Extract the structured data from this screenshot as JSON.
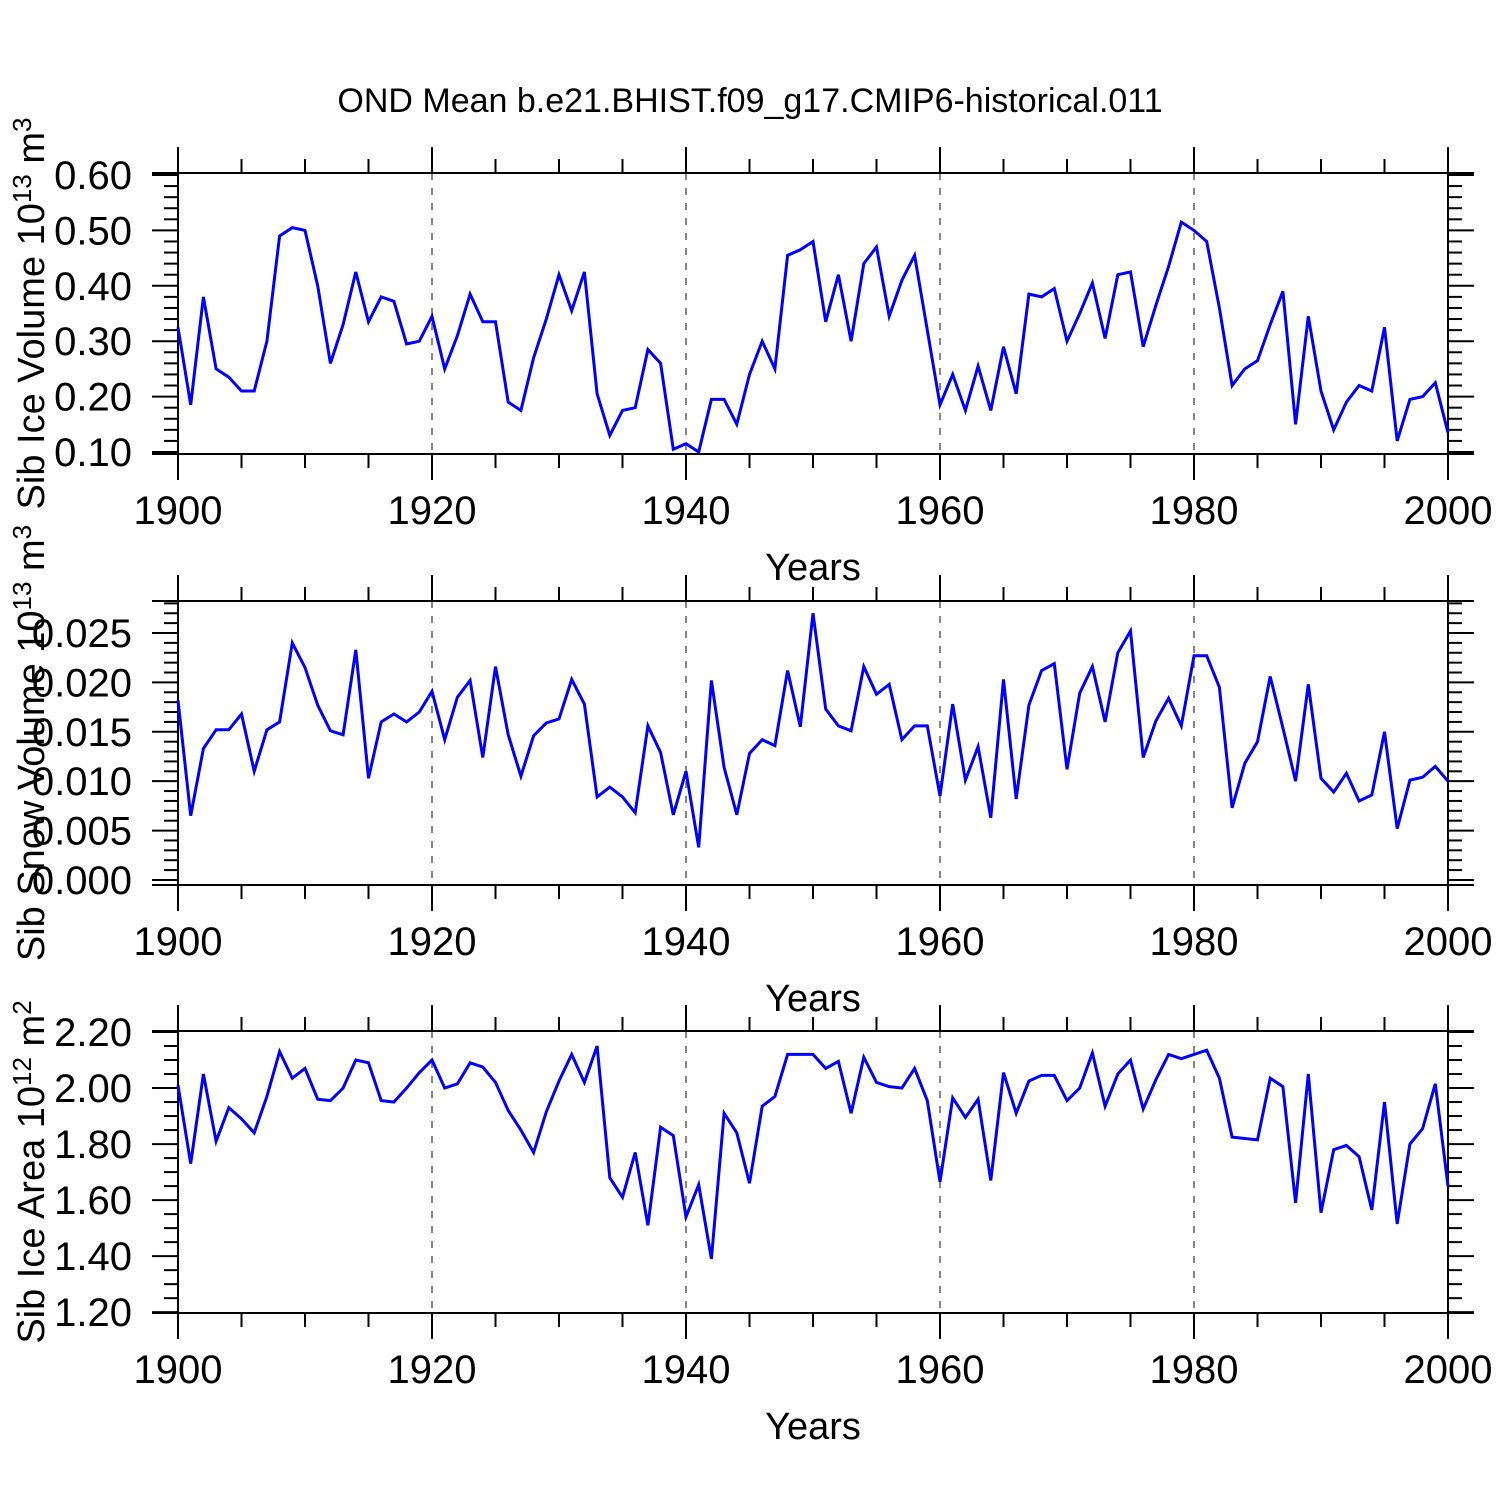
{
  "title": "OND Mean b.e21.BHIST.f09_g17.CMIP6-historical.011",
  "style": {
    "line_color": "#0000ff",
    "grid_color": "#7a7a7a",
    "axis_color": "#000000",
    "background": "#ffffff"
  },
  "chart_data": [
    {
      "type": "line",
      "xlabel": "Years",
      "ylabel": "Sib Ice Volume 10^{13} m^{3}",
      "x_start": 1900,
      "x_step": 1,
      "xlim": [
        1900,
        2000
      ],
      "ylim": [
        0.0964,
        0.6036
      ],
      "xticks_major": [
        1900,
        1920,
        1940,
        1960,
        1980,
        2000
      ],
      "xtick_minor_step": 5,
      "yticks_major": [
        0.1,
        0.2,
        0.3,
        0.4,
        0.5,
        0.6
      ],
      "ytick_labels": [
        "0.10",
        "0.20",
        "0.30",
        "0.40",
        "0.50",
        "0.60"
      ],
      "ytick_minor_step": 0.02,
      "grid_x": [
        1920,
        1940,
        1960,
        1980
      ],
      "grid_on": true,
      "legend": null,
      "series": [
        {
          "name": "Sib Ice Volume",
          "values": [
            0.325,
            0.185,
            0.38,
            0.25,
            0.235,
            0.21,
            0.21,
            0.3,
            0.49,
            0.505,
            0.5,
            0.4,
            0.26,
            0.33,
            0.425,
            0.335,
            0.38,
            0.372,
            0.295,
            0.3,
            0.345,
            0.25,
            0.31,
            0.385,
            0.335,
            0.335,
            0.19,
            0.175,
            0.27,
            0.34,
            0.42,
            0.355,
            0.425,
            0.205,
            0.13,
            0.175,
            0.18,
            0.285,
            0.26,
            0.105,
            0.115,
            0.1,
            0.195,
            0.195,
            0.15,
            0.24,
            0.3,
            0.25,
            0.455,
            0.465,
            0.48,
            0.335,
            0.42,
            0.3,
            0.44,
            0.47,
            0.345,
            0.41,
            0.455,
            0.32,
            0.185,
            0.24,
            0.175,
            0.255,
            0.175,
            0.29,
            0.205,
            0.385,
            0.38,
            0.395,
            0.3,
            0.35,
            0.405,
            0.305,
            0.42,
            0.425,
            0.29,
            0.365,
            0.435,
            0.515,
            0.5,
            0.48,
            0.36,
            0.22,
            0.25,
            0.265,
            0.33,
            0.39,
            0.15,
            0.345,
            0.21,
            0.14,
            0.19,
            0.22,
            0.21,
            0.325,
            0.12,
            0.195,
            0.2,
            0.225,
            0.135
          ]
        }
      ]
    },
    {
      "type": "line",
      "xlabel": "Years",
      "ylabel": "Sib Snow Volume 10^{13} m^{3}",
      "x_start": 1900,
      "x_step": 1,
      "xlim": [
        1900,
        2000
      ],
      "ylim": [
        -0.00051,
        0.02824
      ],
      "xticks_major": [
        1900,
        1920,
        1940,
        1960,
        1980,
        2000
      ],
      "xtick_minor_step": 5,
      "yticks_major": [
        0.0,
        0.005,
        0.01,
        0.015,
        0.02,
        0.025
      ],
      "ytick_labels": [
        "0.000",
        "0.005",
        "0.010",
        "0.015",
        "0.020",
        "0.025"
      ],
      "ytick_minor_step": 0.001,
      "grid_x": [
        1920,
        1940,
        1960,
        1980
      ],
      "grid_on": true,
      "legend": null,
      "series": [
        {
          "name": "Sib Snow Volume",
          "values": [
            0.0182,
            0.0065,
            0.0133,
            0.0152,
            0.0152,
            0.0168,
            0.011,
            0.0152,
            0.016,
            0.024,
            0.0215,
            0.0177,
            0.0151,
            0.0147,
            0.0233,
            0.0103,
            0.016,
            0.0168,
            0.016,
            0.017,
            0.0191,
            0.0142,
            0.0185,
            0.0202,
            0.0124,
            0.0216,
            0.0147,
            0.0105,
            0.0146,
            0.0159,
            0.0163,
            0.0203,
            0.0178,
            0.0084,
            0.0094,
            0.0084,
            0.0068,
            0.0156,
            0.0129,
            0.0066,
            0.011,
            0.0033,
            0.0202,
            0.0114,
            0.0066,
            0.0128,
            0.0142,
            0.0136,
            0.0212,
            0.0155,
            0.027,
            0.0173,
            0.0156,
            0.0151,
            0.0216,
            0.0188,
            0.0198,
            0.0142,
            0.0156,
            0.0156,
            0.0085,
            0.0178,
            0.0101,
            0.0135,
            0.0063,
            0.0203,
            0.0082,
            0.0177,
            0.0212,
            0.0219,
            0.0112,
            0.0189,
            0.0216,
            0.016,
            0.023,
            0.0252,
            0.0124,
            0.0161,
            0.0184,
            0.0156,
            0.0227,
            0.0227,
            0.0195,
            0.0073,
            0.0118,
            0.014,
            0.0206,
            0.0154,
            0.01,
            0.0198,
            0.0103,
            0.0089,
            0.0108,
            0.008,
            0.0086,
            0.015,
            0.0052,
            0.0101,
            0.0104,
            0.0115,
            0.01
          ]
        }
      ]
    },
    {
      "type": "line",
      "xlabel": "Years",
      "ylabel": "Sib Ice Area 10^{12} m^{2}",
      "x_start": 1900,
      "x_step": 1,
      "xlim": [
        1900,
        2000
      ],
      "ylim": [
        1.197,
        2.2036
      ],
      "xticks_major": [
        1900,
        1920,
        1940,
        1960,
        1980,
        2000
      ],
      "xtick_minor_step": 5,
      "yticks_major": [
        1.2,
        1.4,
        1.6,
        1.8,
        2.0,
        2.2
      ],
      "ytick_labels": [
        "1.20",
        "1.40",
        "1.60",
        "1.80",
        "2.00",
        "2.20"
      ],
      "ytick_minor_step": 0.05,
      "grid_x": [
        1920,
        1940,
        1960,
        1980
      ],
      "grid_on": true,
      "legend": null,
      "series": [
        {
          "name": "Sib Ice Area",
          "values": [
            2.01,
            1.73,
            2.05,
            1.81,
            1.93,
            1.89,
            1.84,
            1.97,
            2.13,
            2.035,
            2.07,
            1.96,
            1.955,
            2.0,
            2.1,
            2.09,
            1.955,
            1.95,
            2.0,
            2.055,
            2.1,
            2.0,
            2.015,
            2.09,
            2.075,
            2.02,
            1.92,
            1.85,
            1.77,
            1.915,
            2.025,
            2.12,
            2.02,
            2.15,
            1.68,
            1.61,
            1.77,
            1.51,
            1.86,
            1.83,
            1.54,
            1.655,
            1.39,
            1.91,
            1.84,
            1.66,
            1.935,
            1.97,
            2.12,
            2.12,
            2.12,
            2.07,
            2.095,
            1.91,
            2.11,
            2.02,
            2.005,
            2.0,
            2.07,
            1.955,
            1.665,
            1.965,
            1.895,
            1.96,
            1.67,
            2.055,
            1.91,
            2.025,
            2.045,
            2.045,
            1.955,
            2.0,
            2.125,
            1.935,
            2.05,
            2.1,
            1.925,
            2.03,
            2.12,
            2.105,
            2.12,
            2.135,
            2.035,
            1.825,
            1.82,
            1.815,
            2.035,
            2.005,
            1.59,
            2.05,
            1.555,
            1.78,
            1.795,
            1.755,
            1.565,
            1.95,
            1.515,
            1.8,
            1.855,
            2.015,
            1.65
          ]
        }
      ]
    }
  ]
}
